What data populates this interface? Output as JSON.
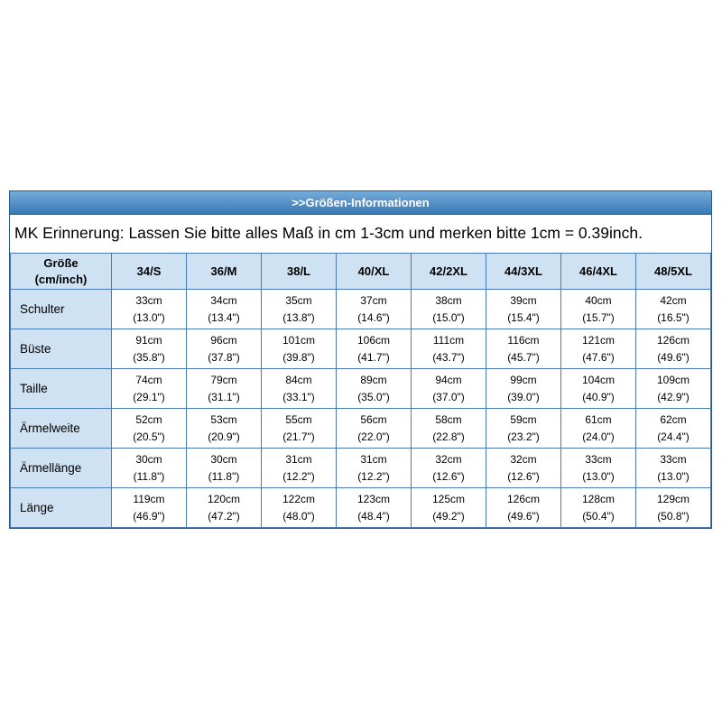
{
  "header_bar": {
    "title": ">>Größen-Informationen"
  },
  "note": {
    "text": "MK Erinnerung: Lassen Sie bitte alles Maß in cm 1-3cm und merken bitte 1cm = 0.39inch."
  },
  "size_table": {
    "corner_header": [
      "Größe",
      "(cm/inch)"
    ],
    "size_headers": [
      "34/S",
      "36/M",
      "38/L",
      "40/XL",
      "42/2XL",
      "44/3XL",
      "46/4XL",
      "48/5XL"
    ],
    "rows": [
      {
        "label": "Schulter",
        "cells": [
          {
            "cm": "33cm",
            "inch": "(13.0\")"
          },
          {
            "cm": "34cm",
            "inch": "(13.4\")"
          },
          {
            "cm": "35cm",
            "inch": "(13.8\")"
          },
          {
            "cm": "37cm",
            "inch": "(14.6\")"
          },
          {
            "cm": "38cm",
            "inch": "(15.0\")"
          },
          {
            "cm": "39cm",
            "inch": "(15.4\")"
          },
          {
            "cm": "40cm",
            "inch": "(15.7\")"
          },
          {
            "cm": "42cm",
            "inch": "(16.5\")"
          }
        ]
      },
      {
        "label": "Büste",
        "cells": [
          {
            "cm": "91cm",
            "inch": "(35.8\")"
          },
          {
            "cm": "96cm",
            "inch": "(37.8\")"
          },
          {
            "cm": "101cm",
            "inch": "(39.8\")"
          },
          {
            "cm": "106cm",
            "inch": "(41.7\")"
          },
          {
            "cm": "111cm",
            "inch": "(43.7\")"
          },
          {
            "cm": "116cm",
            "inch": "(45.7\")"
          },
          {
            "cm": "121cm",
            "inch": "(47.6\")"
          },
          {
            "cm": "126cm",
            "inch": "(49.6\")"
          }
        ]
      },
      {
        "label": "Taille",
        "cells": [
          {
            "cm": "74cm",
            "inch": "(29.1\")"
          },
          {
            "cm": "79cm",
            "inch": "(31.1\")"
          },
          {
            "cm": "84cm",
            "inch": "(33.1\")"
          },
          {
            "cm": "89cm",
            "inch": "(35.0\")"
          },
          {
            "cm": "94cm",
            "inch": "(37.0\")"
          },
          {
            "cm": "99cm",
            "inch": "(39.0\")"
          },
          {
            "cm": "104cm",
            "inch": "(40.9\")"
          },
          {
            "cm": "109cm",
            "inch": "(42.9\")"
          }
        ]
      },
      {
        "label": "Ärmelweite",
        "cells": [
          {
            "cm": "52cm",
            "inch": "(20.5\")"
          },
          {
            "cm": "53cm",
            "inch": "(20.9\")"
          },
          {
            "cm": "55cm",
            "inch": "(21.7\")"
          },
          {
            "cm": "56cm",
            "inch": "(22.0\")"
          },
          {
            "cm": "58cm",
            "inch": "(22.8\")"
          },
          {
            "cm": "59cm",
            "inch": "(23.2\")"
          },
          {
            "cm": "61cm",
            "inch": "(24.0\")"
          },
          {
            "cm": "62cm",
            "inch": "(24.4\")"
          }
        ]
      },
      {
        "label": "Ärmellänge",
        "cells": [
          {
            "cm": "30cm",
            "inch": "(11.8\")"
          },
          {
            "cm": "30cm",
            "inch": "(11.8\")"
          },
          {
            "cm": "31cm",
            "inch": "(12.2\")"
          },
          {
            "cm": "31cm",
            "inch": "(12.2\")"
          },
          {
            "cm": "32cm",
            "inch": "(12.6\")"
          },
          {
            "cm": "32cm",
            "inch": "(12.6\")"
          },
          {
            "cm": "33cm",
            "inch": "(13.0\")"
          },
          {
            "cm": "33cm",
            "inch": "(13.0\")"
          }
        ]
      },
      {
        "label": "Länge",
        "cells": [
          {
            "cm": "119cm",
            "inch": "(46.9\")"
          },
          {
            "cm": "120cm",
            "inch": "(47.2\")"
          },
          {
            "cm": "122cm",
            "inch": "(48.0\")"
          },
          {
            "cm": "123cm",
            "inch": "(48.4\")"
          },
          {
            "cm": "125cm",
            "inch": "(49.2\")"
          },
          {
            "cm": "126cm",
            "inch": "(49.6\")"
          },
          {
            "cm": "128cm",
            "inch": "(50.4\")"
          },
          {
            "cm": "129cm",
            "inch": "(50.8\")"
          }
        ]
      }
    ]
  },
  "colors": {
    "outer_border": "#2e5a87",
    "grid_border": "#4a7ab5",
    "header_bg": "#cfe2f3",
    "bar_top": "#74abd9",
    "bar_bottom": "#3a79b5",
    "bar_text": "#ffffff"
  }
}
